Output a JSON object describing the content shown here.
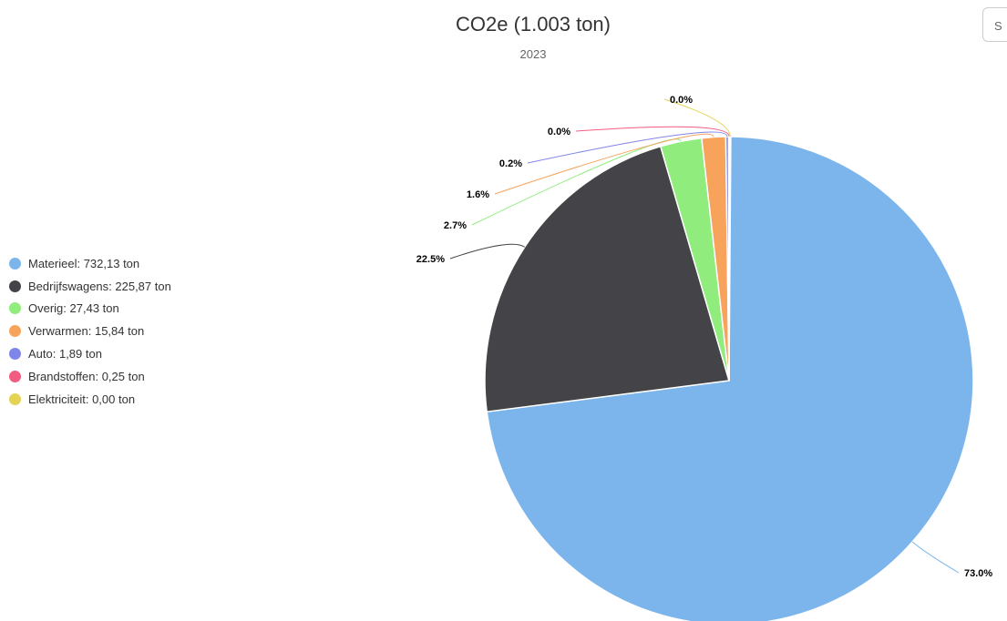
{
  "title": "CO2e (1.003 ton)",
  "subtitle": "2023",
  "corner_button_label": "S",
  "chart_data": {
    "type": "pie",
    "title": "CO2e (1.003 ton)",
    "subtitle": "2023",
    "legend_position": "left",
    "slices": [
      {
        "name": "Materieel",
        "value": 732.13,
        "percent_label": "73.0%",
        "legend_label": "Materieel: 732,13 ton",
        "color": "#7cb5ec"
      },
      {
        "name": "Bedrijfswagens",
        "value": 225.87,
        "percent_label": "22.5%",
        "legend_label": "Bedrijfswagens: 225,87 ton",
        "color": "#434348"
      },
      {
        "name": "Overig",
        "value": 27.43,
        "percent_label": "2.7%",
        "legend_label": "Overig: 27,43 ton",
        "color": "#90ed7d"
      },
      {
        "name": "Verwarmen",
        "value": 15.84,
        "percent_label": "1.6%",
        "legend_label": "Verwarmen: 15,84 ton",
        "color": "#f7a35c"
      },
      {
        "name": "Auto",
        "value": 1.89,
        "percent_label": "0.2%",
        "legend_label": "Auto: 1,89 ton",
        "color": "#8085e9"
      },
      {
        "name": "Brandstoffen",
        "value": 0.25,
        "percent_label": "0.0%",
        "legend_label": "Brandstoffen: 0,25 ton",
        "color": "#f15c80"
      },
      {
        "name": "Elektriciteit",
        "value": 0.0,
        "percent_label": "0.0%",
        "legend_label": "Elektriciteit: 0,00 ton",
        "color": "#e4d354"
      }
    ]
  }
}
